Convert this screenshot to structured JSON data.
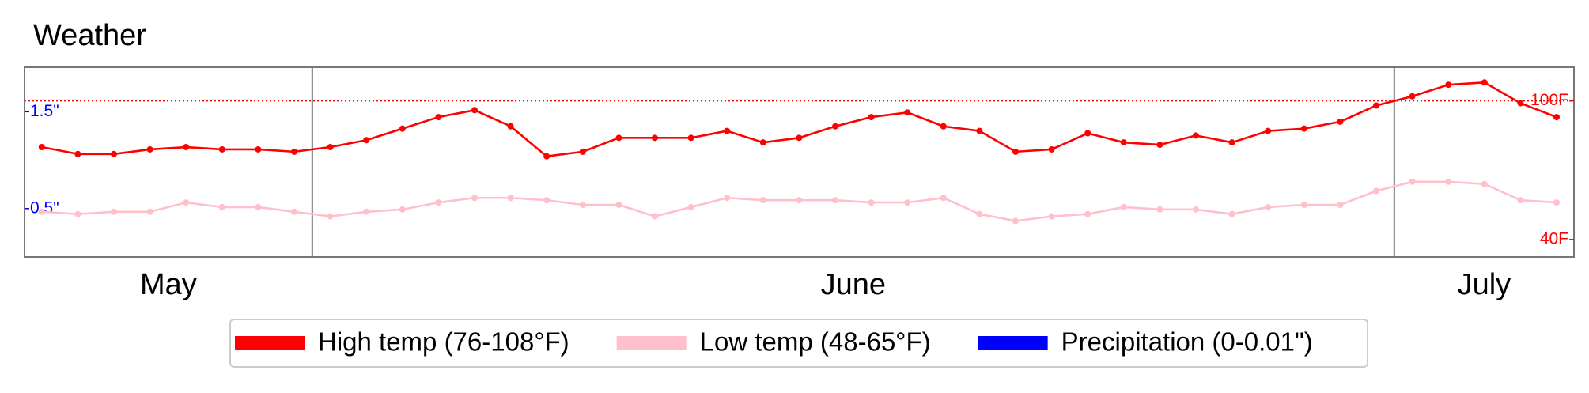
{
  "chart_data": {
    "type": "line",
    "title": "Weather",
    "month_labels": [
      "May",
      "June",
      "July"
    ],
    "month_lengths": [
      8,
      30,
      5
    ],
    "ylim": [
      0,
      1.96
    ],
    "yticks": [
      {
        "value": 0.5,
        "label": "0.5\""
      },
      {
        "value": 1.5,
        "label": "1.5\""
      }
    ],
    "y2lim": [
      32.4,
      114.6
    ],
    "y2ticks": [
      {
        "value": 40,
        "label": "40F"
      },
      {
        "value": 100,
        "label": "100F"
      }
    ],
    "threshold": 100,
    "series": [
      {
        "name": "High temp (76-108°F)",
        "color": "#ff0000",
        "axis": "y2",
        "values": [
          80,
          77,
          77,
          79,
          80,
          79,
          79,
          78,
          80,
          83,
          88,
          93,
          96,
          89,
          76,
          78,
          84,
          84,
          84,
          87,
          82,
          84,
          89,
          93,
          95,
          89,
          87,
          78,
          79,
          86,
          82,
          81,
          85,
          82,
          87,
          88,
          91,
          98,
          102,
          107,
          108,
          99,
          93
        ]
      },
      {
        "name": "Low temp (48-65°F)",
        "color": "#ffc0cb",
        "axis": "y2",
        "values": [
          52,
          51,
          52,
          52,
          56,
          54,
          54,
          52,
          50,
          52,
          53,
          56,
          58,
          58,
          57,
          55,
          55,
          50,
          54,
          58,
          57,
          57,
          57,
          56,
          56,
          58,
          51,
          48,
          50,
          51,
          54,
          53,
          53,
          51,
          54,
          55,
          55,
          61,
          65,
          65,
          64,
          57,
          56
        ]
      },
      {
        "name": "Precipitation (0-0.01\")",
        "color": "#0000ff",
        "axis": "y"
      }
    ]
  }
}
